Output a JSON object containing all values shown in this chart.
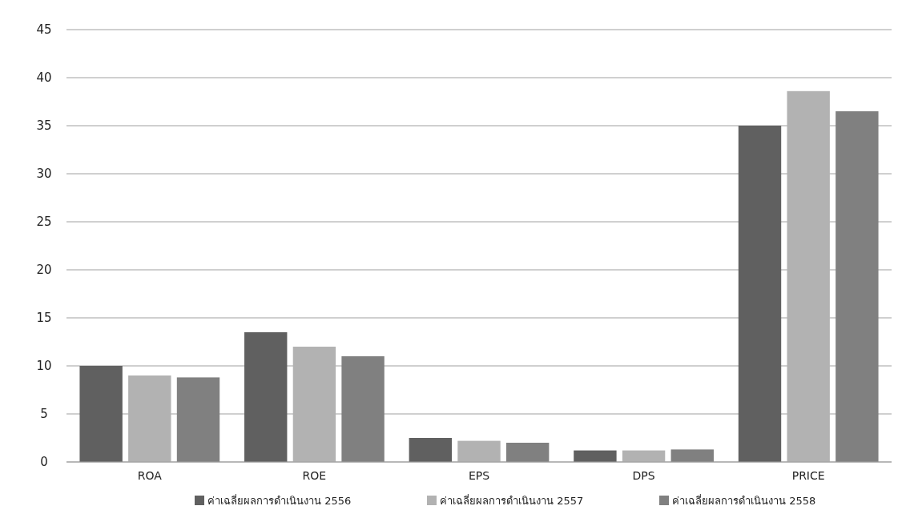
{
  "chart_data": {
    "type": "bar",
    "categories": [
      "ROA",
      "ROE",
      "EPS",
      "DPS",
      "PRICE"
    ],
    "series": [
      {
        "name": "ค่าเฉลี่ยผลการดำเนินงาน 2556",
        "color": "#606060",
        "values": [
          10,
          13.5,
          2.5,
          1.2,
          35
        ]
      },
      {
        "name": "ค่าเฉลี่ยผลการดำเนินงาน 2557",
        "color": "#b2b2b2",
        "values": [
          9,
          12,
          2.2,
          1.2,
          38.6
        ]
      },
      {
        "name": "ค่าเฉลี่ยผลการดำเนินงาน 2558",
        "color": "#808080",
        "values": [
          8.8,
          11,
          2,
          1.3,
          36.5
        ]
      }
    ],
    "ylim": [
      0,
      45
    ],
    "yticks": [
      0,
      5,
      10,
      15,
      20,
      25,
      30,
      35,
      40,
      45
    ],
    "grid": "y",
    "legend": "bottom"
  }
}
